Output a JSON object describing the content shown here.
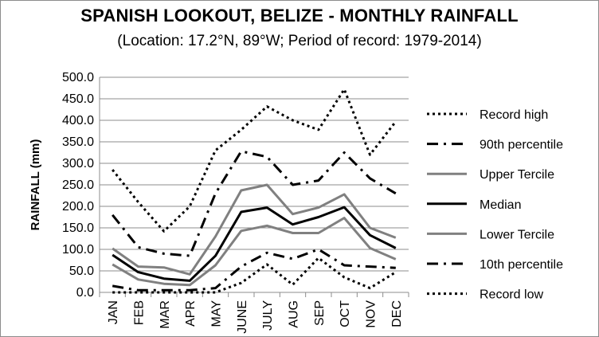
{
  "chart_data": {
    "type": "line",
    "title": "SPANISH LOOKOUT, BELIZE - MONTHLY RAINFALL",
    "subtitle": "(Location: 17.2°N, 89°W; Period of record: 1979-2014)",
    "ylabel": "RAINFALL (mm)",
    "xlabel": "",
    "ylim": [
      0,
      500
    ],
    "yticks": [
      "0.0",
      "50.0",
      "100.0",
      "150.0",
      "200.0",
      "250.0",
      "300.0",
      "350.0",
      "400.0",
      "450.0",
      "500.0"
    ],
    "categories": [
      "JAN",
      "FEB",
      "MAR",
      "APR",
      "MAY",
      "JUNE",
      "JULY",
      "AUG",
      "SEP",
      "OCT",
      "NOV",
      "DEC"
    ],
    "grid": true,
    "legend_position": "right",
    "series": [
      {
        "name": "Record high",
        "style": "dotted",
        "color": "#000000",
        "width": 3,
        "values": [
          285,
          210,
          142,
          200,
          330,
          378,
          432,
          400,
          378,
          472,
          320,
          397
        ]
      },
      {
        "name": "90th percentile",
        "style": "dashdot",
        "color": "#000000",
        "width": 3,
        "values": [
          180,
          105,
          90,
          85,
          230,
          328,
          315,
          250,
          260,
          325,
          265,
          230
        ]
      },
      {
        "name": "Upper Tercile",
        "style": "solid",
        "color": "#808080",
        "width": 3,
        "values": [
          102,
          60,
          58,
          42,
          130,
          237,
          250,
          182,
          197,
          228,
          150,
          127
        ]
      },
      {
        "name": "Median",
        "style": "solid",
        "color": "#000000",
        "width": 3,
        "values": [
          87,
          47,
          32,
          27,
          85,
          187,
          197,
          158,
          175,
          198,
          133,
          103
        ]
      },
      {
        "name": "Lower Tercile",
        "style": "solid",
        "color": "#808080",
        "width": 3,
        "values": [
          65,
          30,
          20,
          17,
          63,
          143,
          155,
          138,
          138,
          173,
          103,
          77
        ]
      },
      {
        "name": "10th percentile",
        "style": "dashdot",
        "color": "#000000",
        "width": 3,
        "values": [
          15,
          5,
          5,
          5,
          10,
          60,
          92,
          78,
          100,
          63,
          60,
          57
        ]
      },
      {
        "name": "Record low",
        "style": "dotted",
        "color": "#000000",
        "width": 3,
        "values": [
          0,
          0,
          0,
          0,
          0,
          22,
          65,
          18,
          80,
          35,
          10,
          47
        ]
      }
    ]
  }
}
